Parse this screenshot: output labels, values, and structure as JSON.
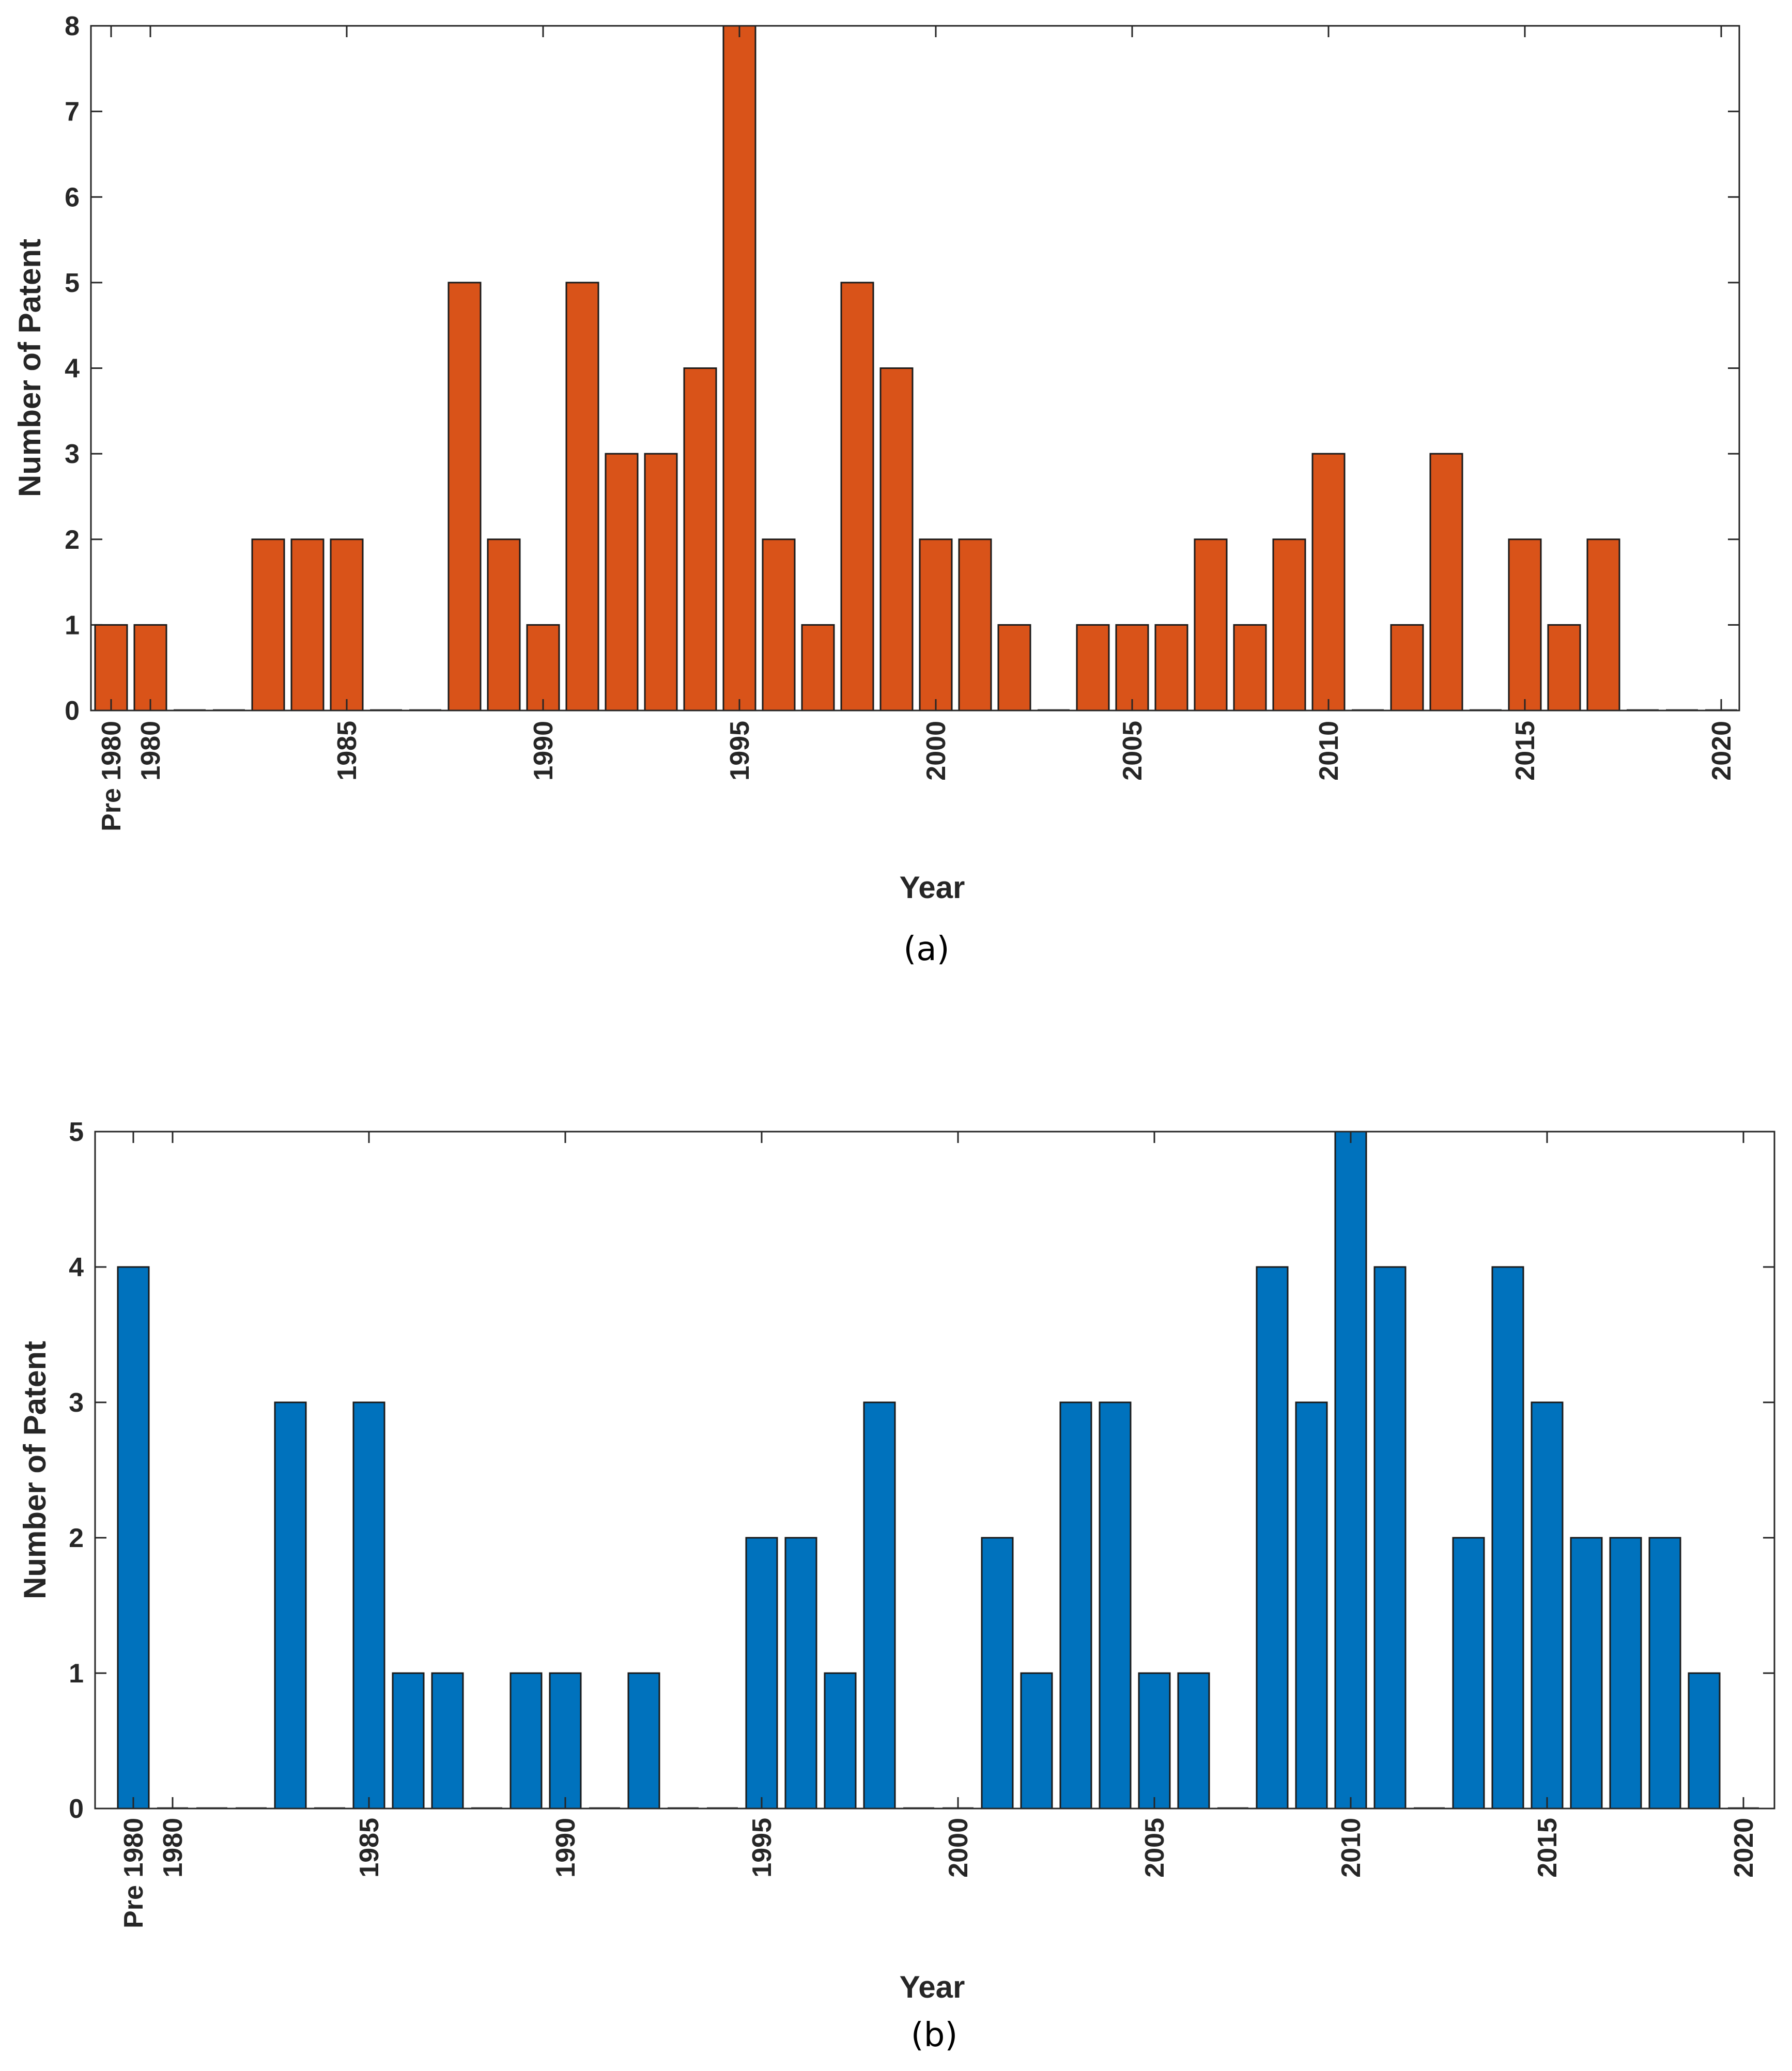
{
  "chart_data": [
    {
      "type": "bar",
      "caption": "(a)",
      "xlabel": "Year",
      "ylabel": "Number of Patent",
      "ylim": [
        0,
        8
      ],
      "yticks": [
        "0",
        "1",
        "2",
        "3",
        "4",
        "5",
        "6",
        "7",
        "8"
      ],
      "x": [
        "Pre 1980",
        "1980",
        "1981",
        "1982",
        "1983",
        "1984",
        "1985",
        "1986",
        "1987",
        "1988",
        "1989",
        "1990",
        "1991",
        "1992",
        "1993",
        "1994",
        "1995",
        "1996",
        "1997",
        "1998",
        "1999",
        "2000",
        "2001",
        "2002",
        "2003",
        "2004",
        "2005",
        "2006",
        "2007",
        "2008",
        "2009",
        "2010",
        "2011",
        "2012",
        "2013",
        "2014",
        "2015",
        "2016",
        "2017",
        "2018",
        "2019",
        "2020"
      ],
      "values": [
        1,
        1,
        0,
        0,
        2,
        2,
        2,
        0,
        0,
        5,
        2,
        1,
        5,
        3,
        3,
        4,
        8,
        2,
        1,
        5,
        4,
        2,
        2,
        1,
        0,
        1,
        1,
        1,
        2,
        1,
        2,
        3,
        0,
        1,
        3,
        0,
        2,
        1,
        2,
        0,
        0,
        0
      ],
      "tick_labels": [
        "Pre 1980",
        "1980",
        "1985",
        "1990",
        "1995",
        "2000",
        "2005",
        "2010",
        "2015",
        "2020"
      ],
      "color": "#D95319"
    },
    {
      "type": "bar",
      "caption": "(b)",
      "xlabel": "Year",
      "ylabel": "Number of Patent",
      "ylim": [
        0,
        5
      ],
      "yticks": [
        "0",
        "1",
        "2",
        "3",
        "4",
        "5"
      ],
      "x": [
        "Pre 1980",
        "1980",
        "1981",
        "1982",
        "1983",
        "1984",
        "1985",
        "1986",
        "1987",
        "1988",
        "1989",
        "1990",
        "1991",
        "1992",
        "1993",
        "1994",
        "1995",
        "1996",
        "1997",
        "1998",
        "1999",
        "2000",
        "2001",
        "2002",
        "2003",
        "2004",
        "2005",
        "2006",
        "2007",
        "2008",
        "2009",
        "2010",
        "2011",
        "2012",
        "2013",
        "2014",
        "2015",
        "2016",
        "2017",
        "2018",
        "2019",
        "2020"
      ],
      "values": [
        4,
        0,
        0,
        0,
        3,
        0,
        3,
        1,
        1,
        0,
        1,
        1,
        0,
        1,
        0,
        0,
        2,
        2,
        1,
        3,
        0,
        0,
        2,
        1,
        3,
        3,
        1,
        1,
        0,
        4,
        3,
        5,
        4,
        0,
        2,
        4,
        3,
        2,
        2,
        2,
        1,
        0
      ],
      "tick_labels": [
        "Pre 1980",
        "1980",
        "1985",
        "1990",
        "1995",
        "2000",
        "2005",
        "2010",
        "2015",
        "2020"
      ],
      "color": "#0072BD"
    }
  ]
}
